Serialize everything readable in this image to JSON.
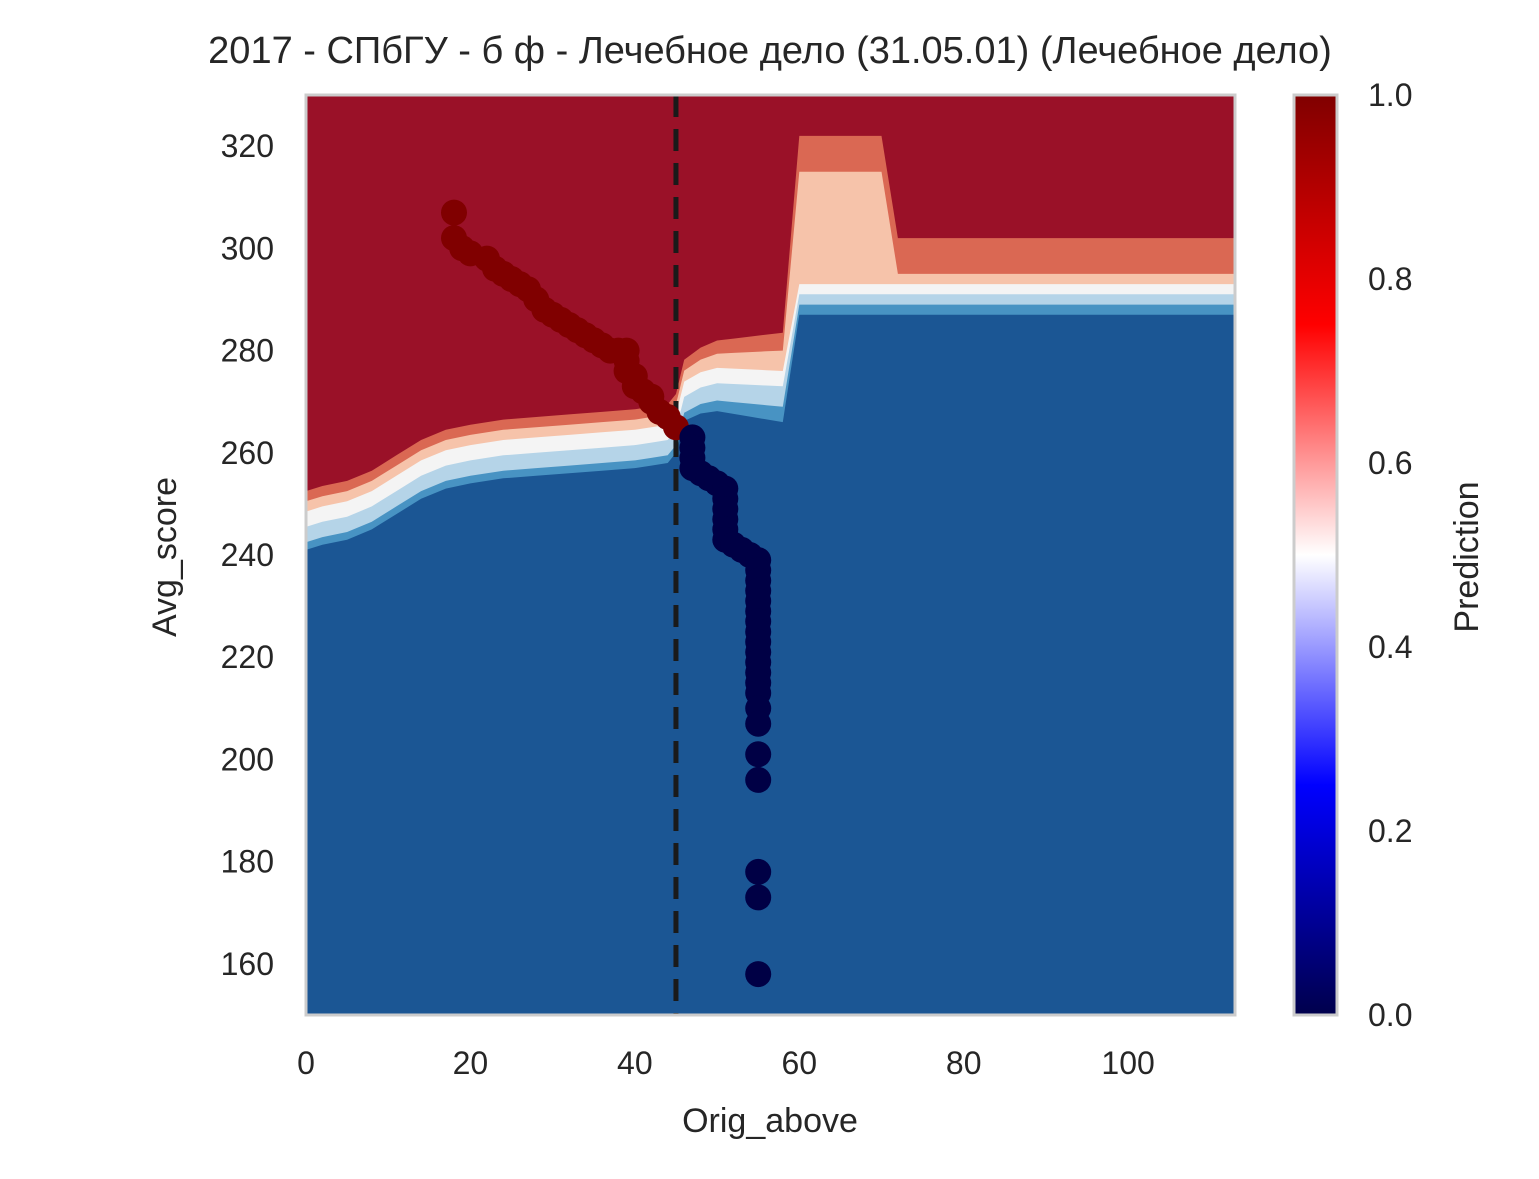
{
  "chart_data": {
    "type": "scatter",
    "title": "2017 - СПбГУ - б ф - Лечебное дело (31.05.01) (Лечебное дело)",
    "xlabel": "Orig_above",
    "ylabel": "Avg_score",
    "xlim": [
      0,
      113
    ],
    "ylim": [
      150,
      330
    ],
    "xticks": [
      0,
      20,
      40,
      60,
      80,
      100
    ],
    "yticks": [
      160,
      180,
      200,
      220,
      240,
      260,
      280,
      300,
      320
    ],
    "grid": false,
    "cutoff_line": {
      "x": 45,
      "style": "dashed",
      "color": "#1a1a1a"
    },
    "colorbar": {
      "label": "Prediction",
      "range": [
        0,
        1
      ],
      "ticks": [
        "0.0",
        "0.2",
        "0.4",
        "0.6",
        "0.8",
        "1.0"
      ],
      "colormap": "seismic"
    },
    "contour_levels": [
      {
        "range": "0.0-0.25",
        "color": "#1b5694"
      },
      {
        "range": "0.25-0.35",
        "color": "#4893c3"
      },
      {
        "range": "0.35-0.45",
        "color": "#b5d4e8"
      },
      {
        "range": "0.45-0.55",
        "color": "#f4f4f4"
      },
      {
        "range": "0.55-0.65",
        "color": "#f6c3aa"
      },
      {
        "range": "0.65-0.75",
        "color": "#da6853"
      },
      {
        "range": "0.75-1.0",
        "color": "#9a1128"
      }
    ],
    "series": [
      {
        "prediction": 1,
        "color": "#800000",
        "points": [
          [
            18,
            307
          ],
          [
            18,
            302
          ],
          [
            19,
            300
          ],
          [
            20,
            299
          ],
          [
            22,
            298
          ],
          [
            23,
            296
          ],
          [
            24,
            295
          ],
          [
            25,
            294
          ],
          [
            26,
            293
          ],
          [
            27,
            292
          ],
          [
            28,
            290
          ],
          [
            29,
            288
          ],
          [
            30,
            287
          ],
          [
            31,
            286
          ],
          [
            32,
            285
          ],
          [
            33,
            284
          ],
          [
            34,
            283
          ],
          [
            35,
            282
          ],
          [
            36,
            281
          ],
          [
            37,
            280
          ],
          [
            38,
            280
          ],
          [
            39,
            280
          ],
          [
            39,
            278
          ],
          [
            39,
            276
          ],
          [
            40,
            275
          ],
          [
            40,
            273
          ],
          [
            41,
            272
          ],
          [
            42,
            271
          ],
          [
            42,
            270
          ],
          [
            43,
            268
          ],
          [
            44,
            267
          ],
          [
            45,
            265
          ]
        ]
      },
      {
        "prediction": 0,
        "color": "#000045",
        "points": [
          [
            47,
            263
          ],
          [
            47,
            261
          ],
          [
            47,
            259
          ],
          [
            47,
            257
          ],
          [
            48,
            256
          ],
          [
            49,
            255
          ],
          [
            50,
            254
          ],
          [
            51,
            253
          ],
          [
            51,
            251
          ],
          [
            51,
            249
          ],
          [
            51,
            247
          ],
          [
            51,
            245
          ],
          [
            51,
            243
          ],
          [
            52,
            242
          ],
          [
            53,
            241
          ],
          [
            54,
            240
          ],
          [
            55,
            239
          ],
          [
            55,
            237
          ],
          [
            55,
            235
          ],
          [
            55,
            233
          ],
          [
            55,
            231
          ],
          [
            55,
            229
          ],
          [
            55,
            227
          ],
          [
            55,
            225
          ],
          [
            55,
            223
          ],
          [
            55,
            221
          ],
          [
            55,
            219
          ],
          [
            55,
            217
          ],
          [
            55,
            215
          ],
          [
            55,
            213
          ],
          [
            55,
            210
          ],
          [
            55,
            207
          ],
          [
            55,
            201
          ],
          [
            55,
            196
          ],
          [
            55,
            178
          ],
          [
            55,
            173
          ],
          [
            55,
            158
          ]
        ]
      }
    ]
  }
}
